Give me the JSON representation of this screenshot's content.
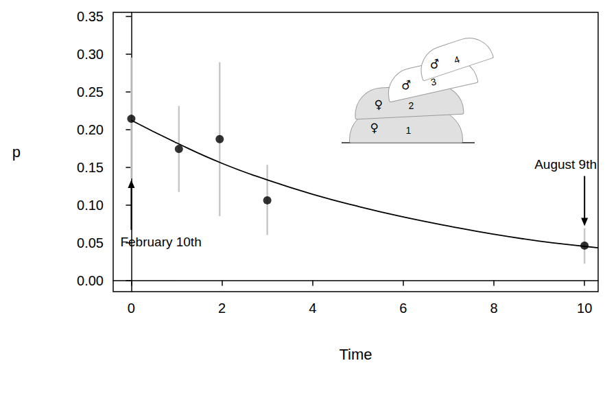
{
  "chart_data": {
    "type": "scatter",
    "x_label": "Time",
    "y_label": "p",
    "xlim": [
      -0.4,
      10.3
    ],
    "ylim": [
      -0.015,
      0.355
    ],
    "xticks": [
      0,
      2,
      4,
      6,
      8,
      10
    ],
    "yticks": [
      {
        "value": 0,
        "label": "0.00"
      },
      {
        "value": 0.05,
        "label": "0.05"
      },
      {
        "value": 0.1,
        "label": "0.10"
      },
      {
        "value": 0.15,
        "label": "0.15"
      },
      {
        "value": 0.2,
        "label": "0.20"
      },
      {
        "value": 0.25,
        "label": "0.25"
      },
      {
        "value": 0.3,
        "label": "0.30"
      },
      {
        "value": 0.35,
        "label": "0.35"
      }
    ],
    "grid": false,
    "points": {
      "x": [
        0,
        1.05,
        1.95,
        3,
        10
      ],
      "values": [
        0.214,
        0.174,
        0.187,
        0.106,
        0.046
      ],
      "lower": [
        0.135,
        0.117,
        0.085,
        0.06,
        0.022
      ],
      "upper": [
        0.295,
        0.231,
        0.289,
        0.153,
        0.069
      ],
      "color": "#000000",
      "marker": "circle",
      "error_bar_color": "#c8c8c8"
    },
    "fit": {
      "type": "line",
      "x": [
        0,
        1,
        2,
        3,
        4,
        5,
        6,
        7,
        8,
        9,
        10,
        10.3
      ],
      "values": [
        0.212,
        0.182,
        0.155,
        0.133,
        0.114,
        0.098,
        0.084,
        0.072,
        0.061,
        0.052,
        0.045,
        0.043
      ],
      "color": "#000000",
      "line_style": "solid"
    },
    "annotations": [
      {
        "text": "February 10th",
        "x": 0,
        "y": 0.135,
        "arrow": "up"
      },
      {
        "text": "August 9th",
        "x": 10,
        "y": 0.07,
        "arrow": "down"
      }
    ],
    "inset": {
      "cells": [
        {
          "label": "1",
          "sex": "♀",
          "color": "#e0e0e0"
        },
        {
          "label": "2",
          "sex": "♀",
          "color": "#e0e0e0"
        },
        {
          "label": "3",
          "sex": "♂",
          "color": "#ffffff"
        },
        {
          "label": "4",
          "sex": "♂",
          "color": "#ffffff"
        }
      ]
    }
  }
}
